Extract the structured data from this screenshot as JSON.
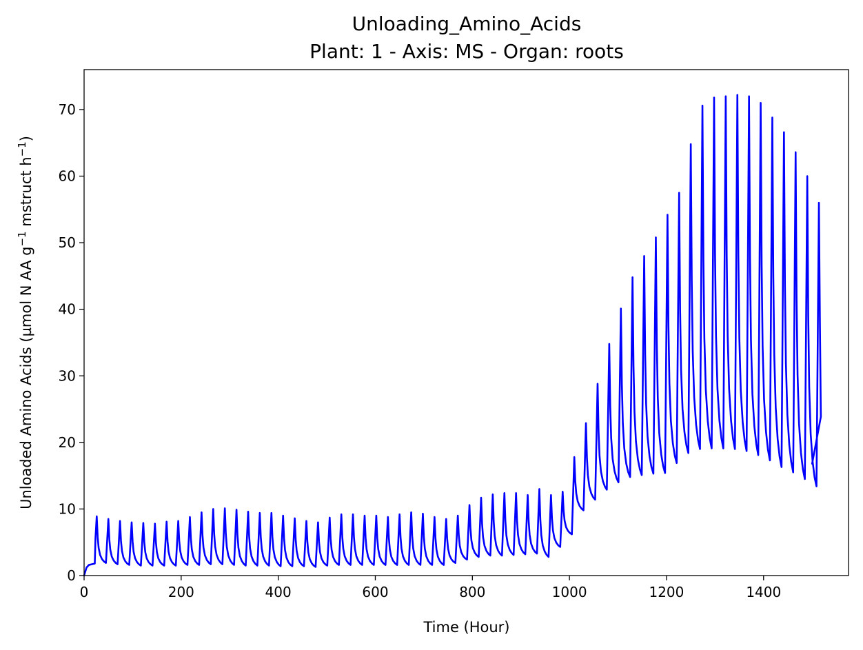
{
  "chart_data": {
    "type": "line",
    "title": "Unloading_Amino_Acids",
    "subtitle": "Plant: 1 - Axis: MS - Organ: roots",
    "xlabel": "Time (Hour)",
    "ylabel_main": "Unloaded Amino Acids (µmol N AA g",
    "ylabel_sup1": "−1",
    "ylabel_mid": " mstruct h",
    "ylabel_sup2": "−1",
    "ylabel_end": ")",
    "xlim": [
      0,
      1575
    ],
    "ylim": [
      0,
      76
    ],
    "xticks": [
      0,
      200,
      400,
      600,
      800,
      1000,
      1200,
      1400
    ],
    "yticks": [
      0,
      10,
      20,
      30,
      40,
      50,
      60,
      70
    ],
    "grid": false,
    "series": [
      {
        "color": "#0000ff",
        "period_hours": 24,
        "first_peak_hour": 26,
        "last_hour": 1500,
        "final_value": 16.8,
        "start_segment": {
          "x": [
            0,
            5,
            10,
            22
          ],
          "y": [
            0,
            1.2,
            1.6,
            1.8
          ]
        },
        "peaks": [
          8.9,
          8.5,
          8.2,
          8.0,
          7.9,
          7.8,
          8.1,
          8.2,
          8.8,
          9.5,
          10.0,
          10.1,
          9.9,
          9.6,
          9.4,
          9.4,
          9.0,
          8.6,
          8.2,
          8.0,
          8.7,
          9.2,
          9.2,
          9.0,
          9.0,
          8.8,
          9.2,
          9.5,
          9.3,
          8.8,
          8.5,
          9.0,
          10.6,
          11.7,
          12.2,
          12.4,
          12.4,
          12.1,
          13.0,
          12.1,
          12.6,
          17.8,
          22.9,
          28.8,
          34.8,
          40.1,
          44.8,
          48.0,
          50.8,
          54.2,
          57.5,
          64.8,
          70.6,
          71.8,
          72.0,
          72.2,
          72.0,
          71.0,
          68.8,
          66.6,
          63.6,
          60.0,
          56.0
        ],
        "troughs": [
          1.9,
          1.7,
          1.6,
          1.5,
          1.5,
          1.5,
          1.5,
          1.6,
          1.6,
          1.7,
          1.7,
          1.6,
          1.5,
          1.5,
          1.5,
          1.4,
          1.4,
          1.4,
          1.3,
          1.5,
          1.6,
          1.6,
          1.6,
          1.6,
          1.6,
          1.6,
          1.6,
          1.6,
          1.6,
          1.6,
          1.9,
          2.4,
          2.8,
          3.0,
          3.0,
          3.1,
          3.2,
          3.3,
          2.8,
          4.3,
          6.2,
          9.8,
          11.4,
          12.9,
          14.0,
          14.8,
          15.1,
          15.3,
          15.4,
          16.9,
          18.4,
          19.0,
          19.1,
          19.1,
          19.0,
          18.7,
          18.1,
          17.3,
          16.3,
          15.5,
          14.5,
          13.4
        ]
      }
    ]
  }
}
